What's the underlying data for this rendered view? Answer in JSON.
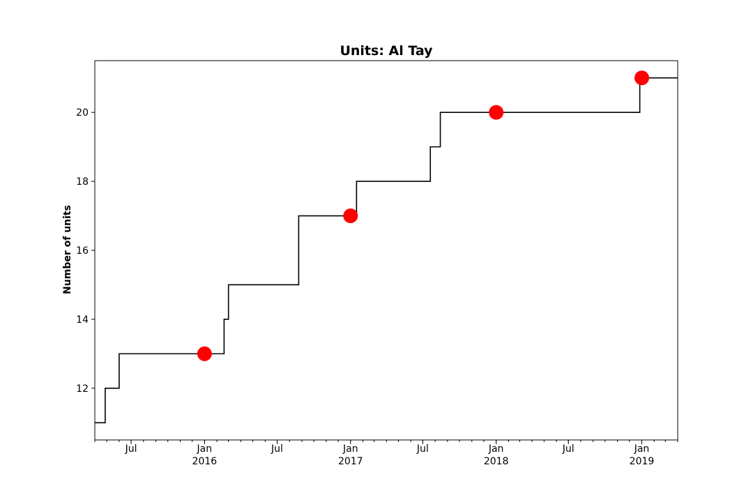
{
  "chart_data": {
    "type": "line",
    "title": "Units: Al Tay",
    "xlabel": "",
    "ylabel": "Number of units",
    "xlim": [
      "2015-04-01",
      "2019-04-01"
    ],
    "ylim": [
      10.5,
      21.5
    ],
    "grid": false,
    "legend": "none",
    "series": [
      {
        "step": true,
        "color": "#000000",
        "x": [
          "2015-04-01",
          "2015-04-27",
          "2015-06-01",
          "2016-02-19",
          "2016-03-01",
          "2016-08-24",
          "2017-01-16",
          "2017-07-20",
          "2017-08-14",
          "2018-12-27",
          "2019-04-01"
        ],
        "y": [
          11,
          12,
          13,
          14,
          15,
          17,
          18,
          19,
          20,
          21,
          21
        ]
      },
      {
        "markers_only": true,
        "color": "#ff0000",
        "x": [
          "2016-01-01",
          "2017-01-01",
          "2018-01-01",
          "2019-01-01"
        ],
        "y": [
          13,
          17,
          20,
          21
        ]
      }
    ],
    "yticks": [
      12,
      14,
      16,
      18,
      20
    ],
    "xticks_major": [
      {
        "date": "2015-07-01",
        "label": "Jul",
        "year": ""
      },
      {
        "date": "2016-01-01",
        "label": "Jan",
        "year": "2016"
      },
      {
        "date": "2016-07-01",
        "label": "Jul",
        "year": ""
      },
      {
        "date": "2017-01-01",
        "label": "Jan",
        "year": "2017"
      },
      {
        "date": "2017-07-01",
        "label": "Jul",
        "year": ""
      },
      {
        "date": "2018-01-01",
        "label": "Jan",
        "year": "2018"
      },
      {
        "date": "2018-07-01",
        "label": "Jul",
        "year": ""
      },
      {
        "date": "2019-01-01",
        "label": "Jan",
        "year": "2019"
      }
    ]
  }
}
